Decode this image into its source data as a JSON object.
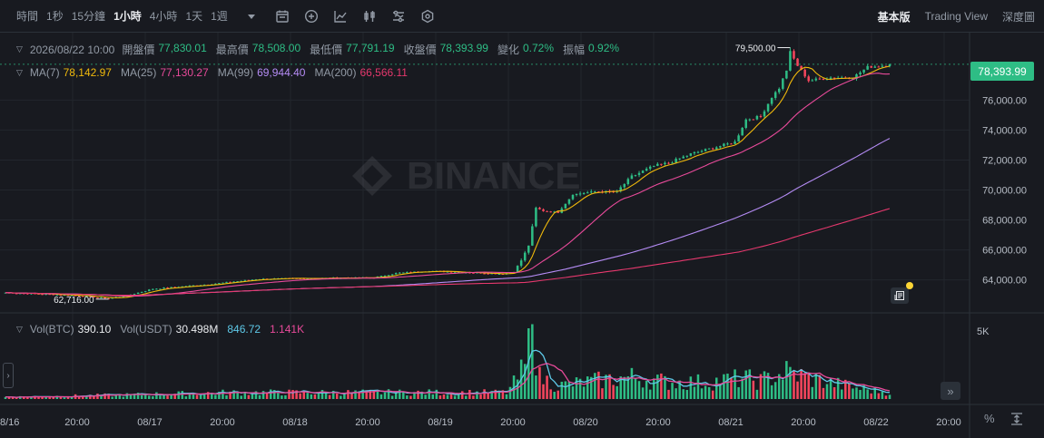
{
  "toolbar": {
    "intervals": [
      "時間",
      "1秒",
      "15分鐘",
      "1小時",
      "4小時",
      "1天",
      "1週"
    ],
    "active_interval": 3,
    "dropdown_icon": "caret-down-icon",
    "tool_icons": [
      "calendar-icon",
      "plus-circle-icon",
      "line-chart-icon",
      "candlestick-icon",
      "indicator-settings-icon",
      "hexagon-settings-icon"
    ],
    "views": [
      "基本版",
      "Trading View",
      "深度圖"
    ],
    "active_view": 0
  },
  "ohlc_legend": {
    "date": "2026/08/22 10:00",
    "items": [
      {
        "label": "開盤價",
        "value": "77,830.01"
      },
      {
        "label": "最高價",
        "value": "78,508.00"
      },
      {
        "label": "最低價",
        "value": "77,791.19"
      },
      {
        "label": "收盤價",
        "value": "78,393.99"
      },
      {
        "label": "變化",
        "value": "0.72%"
      },
      {
        "label": "振幅",
        "value": "0.92%"
      }
    ]
  },
  "ma_legend": [
    {
      "label": "MA(7)",
      "value": "78,142.97",
      "color": "#f0b90b"
    },
    {
      "label": "MA(25)",
      "value": "77,130.27",
      "color": "#e84a9a"
    },
    {
      "label": "MA(99)",
      "value": "69,944.40",
      "color": "#b58cf5"
    },
    {
      "label": "MA(200)",
      "value": "66,566.11",
      "color": "#e5386d"
    }
  ],
  "vol_legend": [
    {
      "label": "Vol(BTC)",
      "value": "390.10",
      "color": "#eaecef"
    },
    {
      "label": "Vol(USDT)",
      "value": "30.498M",
      "color": "#eaecef"
    },
    {
      "label": "",
      "value": "846.72",
      "color": "#5ec9e8"
    },
    {
      "label": "",
      "value": "1.141K",
      "color": "#e84a9a"
    }
  ],
  "watermark": "BINANCE",
  "current_price_badge": "78,393.99",
  "footer": {
    "percent_label": "%",
    "fit_icon": "fit-screen-icon"
  },
  "icons": {
    "side_toggle": "chevron-right-icon",
    "scroll_right": "double-chevron-right-icon",
    "news": "news-icon"
  },
  "colors": {
    "up": "#2ebd85",
    "down": "#f6465d",
    "background": "#181a20",
    "grid": "#22262d",
    "text_muted": "#848e9c"
  },
  "chart_data": {
    "type": "candlestick",
    "interval": "1h",
    "price_axis": {
      "ticks": [
        64000,
        66000,
        68000,
        70000,
        72000,
        74000,
        76000
      ],
      "tick_labels": [
        "64,000.00",
        "66,000.00",
        "68,000.00",
        "70,000.00",
        "72,000.00",
        "74,000.00",
        "76,000.00"
      ],
      "range": [
        61800,
        80500
      ]
    },
    "volume_axis": {
      "ticks": [
        5000
      ],
      "tick_labels": [
        "5K"
      ],
      "range": [
        0,
        6000
      ]
    },
    "time_axis": {
      "labels": [
        "8/16",
        "20:00",
        "08/17",
        "20:00",
        "08/18",
        "20:00",
        "08/19",
        "20:00",
        "08/20",
        "20:00",
        "08/21",
        "20:00",
        "08/22",
        "20:00"
      ]
    },
    "annotations": {
      "high": {
        "value": 79500,
        "label": "79,500.00"
      },
      "low": {
        "value": 62716,
        "label": "62,716.00"
      }
    },
    "anchors": [
      {
        "i": 0,
        "p": 63150
      },
      {
        "i": 20,
        "p": 62950
      },
      {
        "i": 28,
        "p": 62760
      },
      {
        "i": 33,
        "p": 62950
      },
      {
        "i": 40,
        "p": 63400
      },
      {
        "i": 55,
        "p": 63700
      },
      {
        "i": 68,
        "p": 64050
      },
      {
        "i": 80,
        "p": 64100
      },
      {
        "i": 100,
        "p": 64150
      },
      {
        "i": 106,
        "p": 64450
      },
      {
        "i": 115,
        "p": 64600
      },
      {
        "i": 125,
        "p": 64500
      },
      {
        "i": 135,
        "p": 64400
      },
      {
        "i": 138,
        "p": 64550
      },
      {
        "i": 140,
        "p": 65300
      },
      {
        "i": 142,
        "p": 66300
      },
      {
        "i": 144,
        "p": 68800
      },
      {
        "i": 146,
        "p": 68600
      },
      {
        "i": 150,
        "p": 68500
      },
      {
        "i": 154,
        "p": 69700
      },
      {
        "i": 160,
        "p": 69900
      },
      {
        "i": 166,
        "p": 69900
      },
      {
        "i": 170,
        "p": 70900
      },
      {
        "i": 176,
        "p": 71600
      },
      {
        "i": 180,
        "p": 71800
      },
      {
        "i": 186,
        "p": 72400
      },
      {
        "i": 192,
        "p": 72800
      },
      {
        "i": 198,
        "p": 73200
      },
      {
        "i": 201,
        "p": 74700
      },
      {
        "i": 205,
        "p": 74900
      },
      {
        "i": 208,
        "p": 76200
      },
      {
        "i": 210,
        "p": 76800
      },
      {
        "i": 212,
        "p": 78000
      },
      {
        "i": 213,
        "p": 79200
      },
      {
        "i": 215,
        "p": 78300
      },
      {
        "i": 218,
        "p": 77300
      },
      {
        "i": 224,
        "p": 77500
      },
      {
        "i": 230,
        "p": 77500
      },
      {
        "i": 234,
        "p": 78200
      },
      {
        "i": 238,
        "p": 78300
      },
      {
        "i": 240,
        "p": 78390
      }
    ],
    "volume_profile": [
      {
        "i": 0,
        "v": 150
      },
      {
        "i": 30,
        "v": 300
      },
      {
        "i": 60,
        "v": 500
      },
      {
        "i": 100,
        "v": 500
      },
      {
        "i": 136,
        "v": 500
      },
      {
        "i": 138,
        "v": 1200
      },
      {
        "i": 141,
        "v": 2500
      },
      {
        "i": 143,
        "v": 5500
      },
      {
        "i": 145,
        "v": 1700
      },
      {
        "i": 150,
        "v": 1000
      },
      {
        "i": 160,
        "v": 1400
      },
      {
        "i": 170,
        "v": 1700
      },
      {
        "i": 180,
        "v": 1300
      },
      {
        "i": 190,
        "v": 1300
      },
      {
        "i": 200,
        "v": 1600
      },
      {
        "i": 205,
        "v": 1400
      },
      {
        "i": 212,
        "v": 2100
      },
      {
        "i": 220,
        "v": 1500
      },
      {
        "i": 230,
        "v": 900
      },
      {
        "i": 240,
        "v": 500
      }
    ],
    "ma_periods": [
      7,
      25,
      99,
      200
    ]
  }
}
